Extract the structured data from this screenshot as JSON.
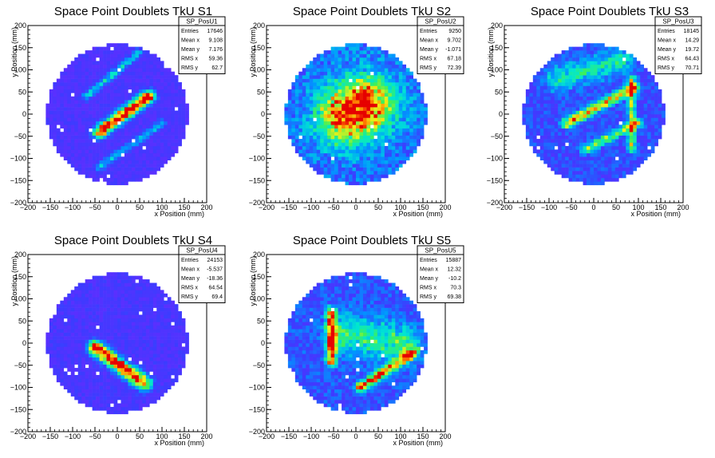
{
  "chart_data": [
    {
      "type": "heatmap",
      "title": "Space Point Doublets TkU S1",
      "xlabel": "x Position (mm)",
      "ylabel": "y Position (mm)",
      "xlim": [
        -200,
        200
      ],
      "ylim": [
        -200,
        200
      ],
      "xticks": [
        -200,
        -150,
        -100,
        -50,
        0,
        50,
        100,
        150,
        200
      ],
      "yticks": [
        -200,
        -150,
        -100,
        -50,
        0,
        50,
        100,
        150,
        200
      ],
      "stats": {
        "name": "SP_PosU1",
        "rows": [
          [
            "Entries",
            "17646"
          ],
          [
            "Mean x",
            "9.108"
          ],
          [
            "Mean y",
            "7.176"
          ],
          [
            "RMS x",
            "59.36"
          ],
          [
            "RMS y",
            "62.7"
          ]
        ]
      },
      "features": [
        {
          "x1": -40,
          "y1": -40,
          "x2": 70,
          "y2": 40,
          "width": 10,
          "peak": 1.0
        },
        {
          "x1": -70,
          "y1": 40,
          "x2": 50,
          "y2": 140,
          "width": 6,
          "peak": 0.35
        },
        {
          "x1": -40,
          "y1": -120,
          "x2": 100,
          "y2": -20,
          "width": 6,
          "peak": 0.3
        }
      ],
      "background_level": 0.12
    },
    {
      "type": "heatmap",
      "title": "Space Point Doublets TkU S2",
      "xlabel": "x Position (mm)",
      "ylabel": "y Position (mm)",
      "xlim": [
        -200,
        200
      ],
      "ylim": [
        -200,
        200
      ],
      "xticks": [
        -200,
        -150,
        -100,
        -50,
        0,
        50,
        100,
        150,
        200
      ],
      "yticks": [
        -200,
        -150,
        -100,
        -50,
        0,
        50,
        100,
        150,
        200
      ],
      "stats": {
        "name": "SP_PosU2",
        "rows": [
          [
            "Entries",
            "9250"
          ],
          [
            "Mean x",
            "9.702"
          ],
          [
            "Mean y",
            "-1.071"
          ],
          [
            "RMS x",
            "67.18"
          ],
          [
            "RMS y",
            "72.39"
          ]
        ]
      },
      "features": [
        {
          "x1": -20,
          "y1": 0,
          "x2": 20,
          "y2": 20,
          "width": 45,
          "peak": 0.85
        }
      ],
      "background_level": 0.28
    },
    {
      "type": "heatmap",
      "title": "Space Point Doublets TkU S3",
      "xlabel": "x Position (mm)",
      "ylabel": "y Position (mm)",
      "xlim": [
        -200,
        200
      ],
      "ylim": [
        -200,
        200
      ],
      "xticks": [
        -200,
        -150,
        -100,
        -50,
        0,
        50,
        100,
        150,
        200
      ],
      "yticks": [
        -200,
        -150,
        -100,
        -50,
        0,
        50,
        100,
        150,
        200
      ],
      "stats": {
        "name": "SP_PosU3",
        "rows": [
          [
            "Entries",
            "18145"
          ],
          [
            "Mean x",
            "14.29"
          ],
          [
            "Mean y",
            "19.72"
          ],
          [
            "RMS x",
            "64.43"
          ],
          [
            "RMS y",
            "70.71"
          ]
        ]
      },
      "features": [
        {
          "x1": -60,
          "y1": -20,
          "x2": 90,
          "y2": 60,
          "width": 8,
          "peak": 0.7
        },
        {
          "x1": -20,
          "y1": -80,
          "x2": 100,
          "y2": -20,
          "width": 7,
          "peak": 0.5
        },
        {
          "x1": 85,
          "y1": -80,
          "x2": 85,
          "y2": 80,
          "width": 6,
          "peak": 0.55
        },
        {
          "x1": -80,
          "y1": 80,
          "x2": 60,
          "y2": 120,
          "width": 20,
          "peak": 0.35
        }
      ],
      "background_level": 0.2
    },
    {
      "type": "heatmap",
      "title": "Space Point Doublets TkU S4",
      "xlabel": "x Position (mm)",
      "ylabel": "y Position (mm)",
      "xlim": [
        -200,
        200
      ],
      "ylim": [
        -200,
        200
      ],
      "xticks": [
        -200,
        -150,
        -100,
        -50,
        0,
        50,
        100,
        150,
        200
      ],
      "yticks": [
        -200,
        -150,
        -100,
        -50,
        0,
        50,
        100,
        150,
        200
      ],
      "stats": {
        "name": "SP_PosU4",
        "rows": [
          [
            "Entries",
            "24153"
          ],
          [
            "Mean x",
            "-5.537"
          ],
          [
            "Mean y",
            "-18.36"
          ],
          [
            "RMS x",
            "64.54"
          ],
          [
            "RMS y",
            "69.4"
          ]
        ]
      },
      "features": [
        {
          "x1": -50,
          "y1": -10,
          "x2": 60,
          "y2": -90,
          "width": 11,
          "peak": 1.0
        }
      ],
      "background_level": 0.13
    },
    {
      "type": "heatmap",
      "title": "Space Point Doublets TkU S5",
      "xlabel": "x Position (mm)",
      "ylabel": "y Position (mm)",
      "xlim": [
        -200,
        200
      ],
      "ylim": [
        -200,
        200
      ],
      "xticks": [
        -200,
        -150,
        -100,
        -50,
        0,
        50,
        100,
        150,
        200
      ],
      "yticks": [
        -200,
        -150,
        -100,
        -50,
        0,
        50,
        100,
        150,
        200
      ],
      "stats": {
        "name": "SP_PosU5",
        "rows": [
          [
            "Entries",
            "15887"
          ],
          [
            "Mean x",
            "12.32"
          ],
          [
            "Mean y",
            "-10.2"
          ],
          [
            "RMS x",
            "70.3"
          ],
          [
            "RMS y",
            "69.38"
          ]
        ]
      },
      "features": [
        {
          "x1": -55,
          "y1": -40,
          "x2": -55,
          "y2": 70,
          "width": 8,
          "peak": 0.8
        },
        {
          "x1": 10,
          "y1": -100,
          "x2": 130,
          "y2": -20,
          "width": 8,
          "peak": 0.8
        },
        {
          "x1": -20,
          "y1": 20,
          "x2": 100,
          "y2": 0,
          "width": 30,
          "peak": 0.4
        }
      ],
      "background_level": 0.22
    }
  ]
}
